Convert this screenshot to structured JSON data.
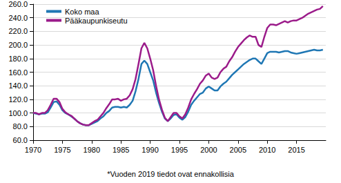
{
  "chart_data": {
    "type": "line",
    "x": [
      1970,
      1970.5,
      1971,
      1971.5,
      1972,
      1972.5,
      1973,
      1973.5,
      1974,
      1974.5,
      1975,
      1975.5,
      1976,
      1976.5,
      1977,
      1977.5,
      1978,
      1978.5,
      1979,
      1979.5,
      1980,
      1980.5,
      1981,
      1981.5,
      1982,
      1982.5,
      1983,
      1983.5,
      1984,
      1984.5,
      1985,
      1985.5,
      1986,
      1986.5,
      1987,
      1987.5,
      1988,
      1988.5,
      1989,
      1989.5,
      1990,
      1990.5,
      1991,
      1991.5,
      1992,
      1992.5,
      1993,
      1993.5,
      1994,
      1994.5,
      1995,
      1995.5,
      1996,
      1996.5,
      1997,
      1997.5,
      1998,
      1998.5,
      1999,
      1999.5,
      2000,
      2000.5,
      2001,
      2001.5,
      2002,
      2002.5,
      2003,
      2003.5,
      2004,
      2004.5,
      2005,
      2005.5,
      2006,
      2006.5,
      2007,
      2007.5,
      2008,
      2008.5,
      2009,
      2009.5,
      2010,
      2010.5,
      2011,
      2011.5,
      2012,
      2012.5,
      2013,
      2013.5,
      2014,
      2014.5,
      2015,
      2015.5,
      2016,
      2016.5,
      2017,
      2017.5,
      2018,
      2018.5,
      2019,
      2019.5
    ],
    "series": [
      {
        "name": "Koko maa",
        "color": "#1f77b4",
        "values": [
          100,
          99,
          98,
          99,
          99,
          101,
          108,
          116,
          117,
          112,
          104,
          100,
          98,
          95,
          92,
          88,
          85,
          83,
          82,
          82,
          84,
          86,
          88,
          92,
          95,
          100,
          103,
          108,
          109,
          109,
          108,
          109,
          108,
          112,
          118,
          132,
          150,
          172,
          177,
          172,
          160,
          148,
          130,
          115,
          102,
          92,
          88,
          92,
          97,
          98,
          93,
          90,
          94,
          102,
          112,
          118,
          123,
          128,
          130,
          136,
          139,
          136,
          133,
          133,
          139,
          143,
          146,
          151,
          156,
          160,
          164,
          168,
          172,
          175,
          178,
          180,
          180,
          176,
          172,
          180,
          188,
          190,
          190,
          190,
          189,
          190,
          191,
          191,
          189,
          188,
          187,
          188,
          189,
          190,
          191,
          192,
          193,
          192,
          192,
          193
        ]
      },
      {
        "name": "Pääkaupunkiseutu",
        "color": "#9b1b8a",
        "values": [
          100,
          100,
          98,
          100,
          100,
          104,
          112,
          121,
          121,
          116,
          106,
          101,
          98,
          96,
          92,
          88,
          85,
          83,
          82,
          82,
          85,
          88,
          90,
          95,
          100,
          107,
          113,
          120,
          120,
          121,
          118,
          120,
          121,
          126,
          135,
          150,
          172,
          195,
          203,
          195,
          180,
          163,
          140,
          120,
          105,
          93,
          88,
          94,
          100,
          100,
          95,
          92,
          98,
          108,
          120,
          128,
          135,
          143,
          148,
          155,
          158,
          152,
          150,
          152,
          160,
          165,
          168,
          176,
          182,
          190,
          197,
          202,
          207,
          211,
          214,
          212,
          212,
          200,
          197,
          212,
          225,
          230,
          230,
          229,
          231,
          233,
          235,
          233,
          235,
          236,
          236,
          238,
          240,
          243,
          246,
          248,
          250,
          252,
          253,
          257
        ]
      }
    ],
    "xlim": [
      1970,
      2020
    ],
    "xticks": [
      1970,
      1975,
      1980,
      1985,
      1990,
      1995,
      2000,
      2005,
      2010,
      2015
    ],
    "ylim": [
      60,
      260
    ],
    "yticks": [
      {
        "value": 60,
        "label": "60.0"
      },
      {
        "value": 80,
        "label": "80.0"
      },
      {
        "value": 100,
        "label": "100.0"
      },
      {
        "value": 120,
        "label": "120.0"
      },
      {
        "value": 140,
        "label": "140.0"
      },
      {
        "value": 160,
        "label": "160.0"
      },
      {
        "value": 180,
        "label": "180.0"
      },
      {
        "value": 200,
        "label": "200.0"
      },
      {
        "value": 220,
        "label": "220.0"
      },
      {
        "value": 240,
        "label": "240.0"
      },
      {
        "value": 260,
        "label": "260.0"
      }
    ],
    "grid": true,
    "legend": "upper left",
    "annotation": "*Vuoden 2019 tiedot ovat ennakollisia"
  }
}
